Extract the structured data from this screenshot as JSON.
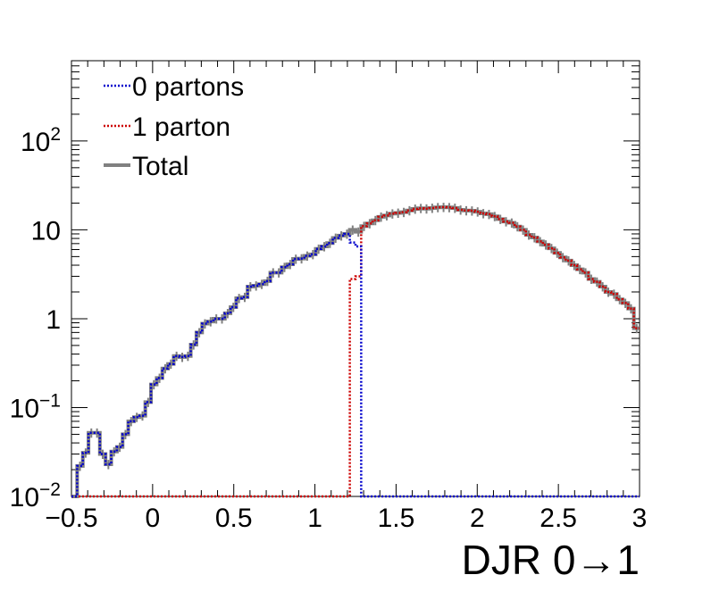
{
  "chart_data": {
    "type": "line",
    "xlabel": "DJR 0→1",
    "ylabel": "",
    "xlim": [
      -0.5,
      3.0
    ],
    "ylim": [
      0.01,
      800
    ],
    "yscale": "log",
    "grid": false,
    "legend": "top-left",
    "xticks": [
      "−0.5",
      "0",
      "0.5",
      "1",
      "1.5",
      "2",
      "2.5",
      "3"
    ],
    "xtick_values": [
      -0.5,
      0,
      0.5,
      1,
      1.5,
      2,
      2.5,
      3
    ],
    "ytick_values": [
      0.01,
      0.1,
      1,
      10,
      100
    ],
    "ytick_labels": [
      {
        "base": "10",
        "exp": "−2"
      },
      {
        "base": "10",
        "exp": "−1"
      },
      {
        "base": "1",
        "exp": ""
      },
      {
        "base": "10",
        "exp": ""
      },
      {
        "base": "10",
        "exp": "2"
      }
    ],
    "bins": {
      "start": -0.5,
      "width": 0.035,
      "count": 100
    },
    "series": [
      {
        "name": "0 partons",
        "color": "#0000cc",
        "style": "dotted",
        "values": [
          0.008,
          0.022,
          0.031,
          0.052,
          0.052,
          0.03,
          0.023,
          0.032,
          0.036,
          0.05,
          0.07,
          0.078,
          0.081,
          0.115,
          0.182,
          0.215,
          0.275,
          0.31,
          0.38,
          0.37,
          0.38,
          0.51,
          0.7,
          0.88,
          0.93,
          1.0,
          1.0,
          1.15,
          1.35,
          1.7,
          1.75,
          2.3,
          2.35,
          2.45,
          2.65,
          3.3,
          3.3,
          3.8,
          4.1,
          4.7,
          4.75,
          5.1,
          5.3,
          6.1,
          6.5,
          7.1,
          8.1,
          8.6,
          9.0,
          7.2,
          6.5,
          0.008,
          0.008,
          0.008,
          0.008,
          0.008,
          0.008,
          0.008,
          0.008,
          0.008,
          0.008,
          0.008,
          0.008,
          0.008,
          0.008,
          0.008,
          0.008,
          0.008,
          0.008,
          0.008,
          0.008,
          0.008,
          0.008,
          0.008,
          0.008,
          0.008,
          0.008,
          0.008,
          0.008,
          0.008,
          0.008,
          0.008,
          0.008,
          0.008,
          0.008,
          0.008,
          0.008,
          0.008,
          0.008,
          0.008,
          0.008,
          0.008,
          0.008,
          0.008,
          0.008,
          0.008,
          0.008,
          0.008,
          0.008,
          0.008
        ]
      },
      {
        "name": "1 parton",
        "color": "#cc0000",
        "style": "dotted",
        "values": [
          0.008,
          0.008,
          0.008,
          0.008,
          0.008,
          0.008,
          0.008,
          0.008,
          0.008,
          0.008,
          0.008,
          0.008,
          0.008,
          0.008,
          0.008,
          0.008,
          0.008,
          0.008,
          0.008,
          0.008,
          0.008,
          0.008,
          0.008,
          0.008,
          0.008,
          0.008,
          0.008,
          0.008,
          0.008,
          0.008,
          0.008,
          0.008,
          0.008,
          0.008,
          0.008,
          0.008,
          0.008,
          0.008,
          0.008,
          0.008,
          0.008,
          0.008,
          0.008,
          0.008,
          0.008,
          0.008,
          0.008,
          0.008,
          0.008,
          2.8,
          3.0,
          11.0,
          11.8,
          12.8,
          14.0,
          14.5,
          15.2,
          15.5,
          15.8,
          16.5,
          17.2,
          17.5,
          17.3,
          17.6,
          17.9,
          18.0,
          17.9,
          17.6,
          16.8,
          16.5,
          16.4,
          16.0,
          15.3,
          15.0,
          14.2,
          13.2,
          12.4,
          12.0,
          10.9,
          10.0,
          8.8,
          8.2,
          7.4,
          6.8,
          6.2,
          5.5,
          4.9,
          4.5,
          4.0,
          3.6,
          3.3,
          2.8,
          2.6,
          2.3,
          2.0,
          1.9,
          1.65,
          1.5,
          1.3,
          0.78
        ]
      },
      {
        "name": "Total",
        "color": "#808080",
        "style": "solid",
        "values": [
          0.008,
          0.022,
          0.031,
          0.052,
          0.052,
          0.03,
          0.023,
          0.032,
          0.036,
          0.05,
          0.07,
          0.078,
          0.081,
          0.115,
          0.182,
          0.215,
          0.275,
          0.31,
          0.38,
          0.37,
          0.38,
          0.51,
          0.7,
          0.88,
          0.93,
          1.0,
          1.0,
          1.15,
          1.35,
          1.7,
          1.75,
          2.3,
          2.35,
          2.45,
          2.65,
          3.3,
          3.3,
          3.8,
          4.1,
          4.7,
          4.75,
          5.1,
          5.3,
          6.1,
          6.5,
          7.1,
          8.1,
          8.6,
          9.0,
          10.0,
          9.5,
          11.0,
          11.8,
          12.8,
          14.0,
          14.5,
          15.2,
          15.5,
          15.8,
          16.5,
          17.2,
          17.5,
          17.3,
          17.6,
          17.9,
          18.0,
          17.9,
          17.6,
          16.8,
          16.5,
          16.4,
          16.0,
          15.3,
          15.0,
          14.2,
          13.2,
          12.4,
          12.0,
          10.9,
          10.0,
          8.8,
          8.2,
          7.4,
          6.8,
          6.2,
          5.5,
          4.9,
          4.5,
          4.0,
          3.6,
          3.3,
          2.8,
          2.6,
          2.3,
          2.0,
          1.9,
          1.65,
          1.5,
          1.3,
          0.78
        ]
      }
    ]
  }
}
